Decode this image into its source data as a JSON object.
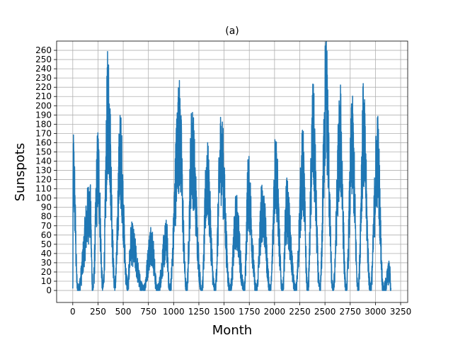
{
  "chart_data": {
    "type": "line",
    "title": "(a)",
    "xlabel": "Month",
    "ylabel": "Sunspots",
    "xlim": [
      -160,
      3320
    ],
    "ylim": [
      -13,
      270
    ],
    "xticks": [
      0,
      250,
      500,
      750,
      1000,
      1250,
      1500,
      1750,
      2000,
      2250,
      2500,
      2750,
      3000,
      3250
    ],
    "yticks": [
      0,
      10,
      20,
      30,
      40,
      50,
      60,
      70,
      80,
      90,
      100,
      110,
      120,
      130,
      140,
      150,
      160,
      170,
      180,
      190,
      200,
      210,
      220,
      230,
      240,
      250,
      260
    ],
    "grid": true,
    "series": [
      {
        "name": "Sunspots",
        "color": "#1f77b4",
        "cycles": [
          {
            "start": 0,
            "peak_month": 5,
            "peak": 159,
            "min": 0
          },
          {
            "start": 50,
            "peak_month": 170,
            "peak": 107,
            "min": 0
          },
          {
            "start": 200,
            "peak_month": 250,
            "peak": 158,
            "min": 4
          },
          {
            "start": 300,
            "peak_month": 350,
            "peak": 238,
            "min": 4
          },
          {
            "start": 420,
            "peak_month": 470,
            "peak": 174,
            "min": 10
          },
          {
            "start": 540,
            "peak_month": 580,
            "peak": 62,
            "min": 0
          },
          {
            "start": 700,
            "peak_month": 780,
            "peak": 62,
            "min": 0
          },
          {
            "start": 840,
            "peak_month": 930,
            "peak": 65,
            "min": 0
          },
          {
            "start": 960,
            "peak_month": 1055,
            "peak": 206,
            "min": 0
          },
          {
            "start": 1130,
            "peak_month": 1180,
            "peak": 181,
            "min": 2
          },
          {
            "start": 1280,
            "peak_month": 1330,
            "peak": 146,
            "min": 0
          },
          {
            "start": 1410,
            "peak_month": 1470,
            "peak": 178,
            "min": 0
          },
          {
            "start": 1560,
            "peak_month": 1620,
            "peak": 91,
            "min": 0
          },
          {
            "start": 1700,
            "peak_month": 1740,
            "peak": 130,
            "min": 0
          },
          {
            "start": 1820,
            "peak_month": 1880,
            "peak": 108,
            "min": 0
          },
          {
            "start": 1960,
            "peak_month": 2010,
            "peak": 157,
            "min": 0
          },
          {
            "start": 2080,
            "peak_month": 2120,
            "peak": 106,
            "min": 0
          },
          {
            "start": 2210,
            "peak_month": 2280,
            "peak": 157,
            "min": 0
          },
          {
            "start": 2330,
            "peak_month": 2380,
            "peak": 202,
            "min": 0
          },
          {
            "start": 2450,
            "peak_month": 2510,
            "peak": 254,
            "min": 0
          },
          {
            "start": 2580,
            "peak_month": 2650,
            "peak": 200,
            "min": 0
          },
          {
            "start": 2710,
            "peak_month": 2770,
            "peak": 188,
            "min": 0
          },
          {
            "start": 2830,
            "peak_month": 2880,
            "peak": 201,
            "min": 4
          },
          {
            "start": 2950,
            "peak_month": 3020,
            "peak": 173,
            "min": 0
          },
          {
            "start": 3080,
            "peak_month": 3140,
            "peak": 24,
            "min": 0
          }
        ],
        "x_end": 3155
      }
    ]
  }
}
